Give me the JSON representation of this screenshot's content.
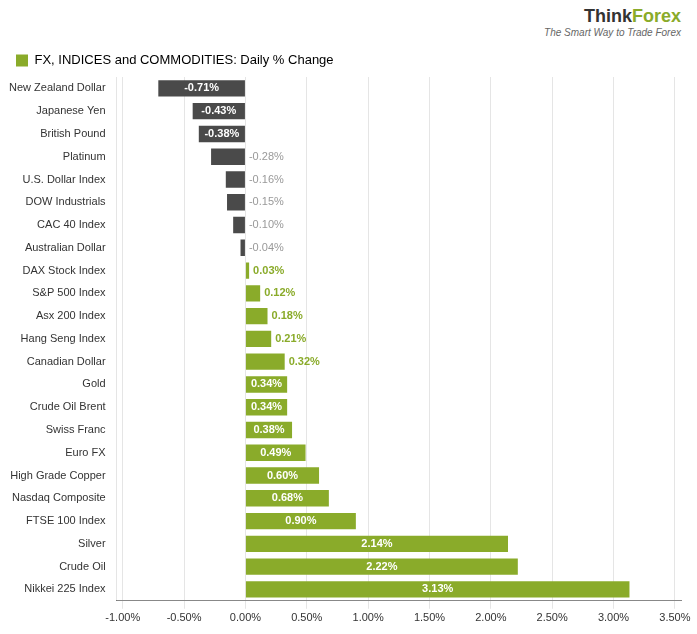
{
  "chart_data": {
    "type": "bar",
    "orientation": "horizontal",
    "title": "FX, INDICES and COMMODITIES: Daily % Change",
    "legend": "upper left",
    "color": "#8aab2a",
    "categories": [
      "New Zealand Dollar",
      "Japanese Yen",
      "British Pound",
      "Platinum",
      "U.S. Dollar Index",
      "DOW Industrials",
      "CAC 40 Index",
      "Australian Dollar",
      "DAX Stock Index",
      "S&P 500 Index",
      "Asx 200 Index",
      "Hang Seng Index",
      "Canadian Dollar",
      "Gold",
      "Crude Oil Brent",
      "Swiss Franc",
      "Euro FX",
      "High Grade Copper",
      "Nasdaq Composite",
      "FTSE 100 Index",
      "Silver",
      "Crude Oil",
      "Nikkei 225 Index"
    ],
    "values": [
      -0.71,
      -0.43,
      -0.38,
      -0.28,
      -0.16,
      -0.15,
      -0.1,
      -0.04,
      0.03,
      0.12,
      0.18,
      0.21,
      0.32,
      0.34,
      0.34,
      0.38,
      0.49,
      0.6,
      0.68,
      0.9,
      2.14,
      2.22,
      3.13
    ],
    "value_labels": [
      "-0.71%",
      "-0.43%",
      "-0.38%",
      "-0.28%",
      "-0.16%",
      "-0.15%",
      "-0.10%",
      "-0.04%",
      "0.03%",
      "0.12%",
      "0.18%",
      "0.21%",
      "0.32%",
      "0.34%",
      "0.34%",
      "0.38%",
      "0.49%",
      "0.60%",
      "0.68%",
      "0.90%",
      "2.14%",
      "2.22%",
      "3.13%"
    ],
    "data_labels": true,
    "colors": [
      "#4a4a4a",
      "#4a4a4a",
      "#4a4a4a",
      "#4a4a4a",
      "#4a4a4a",
      "#4a4a4a",
      "#4a4a4a",
      "#4a4a4a",
      "#8aab2a",
      "#8aab2a",
      "#8aab2a",
      "#8aab2a",
      "#8aab2a",
      "#8aab2a",
      "#8aab2a",
      "#8aab2a",
      "#8aab2a",
      "#8aab2a",
      "#8aab2a",
      "#8aab2a",
      "#8aab2a",
      "#8aab2a",
      "#8aab2a"
    ],
    "xlim": [
      -1.05,
      3.55
    ],
    "xticks": [
      {
        "value": -1.0,
        "label": "-1.00%"
      },
      {
        "value": -0.5,
        "label": "-0.50%"
      },
      {
        "value": 0.0,
        "label": "0.00%"
      },
      {
        "value": 0.5,
        "label": "0.50%"
      },
      {
        "value": 1.0,
        "label": "1.00%"
      },
      {
        "value": 1.5,
        "label": "1.50%"
      },
      {
        "value": 2.0,
        "label": "2.00%"
      },
      {
        "value": 2.5,
        "label": "2.50%"
      },
      {
        "value": 3.0,
        "label": "3.00%"
      },
      {
        "value": 3.5,
        "label": "3.50%"
      }
    ],
    "grid": true,
    "annotations": [
      "Think",
      "Forex",
      "The Smart Way to Trade Forex"
    ]
  }
}
